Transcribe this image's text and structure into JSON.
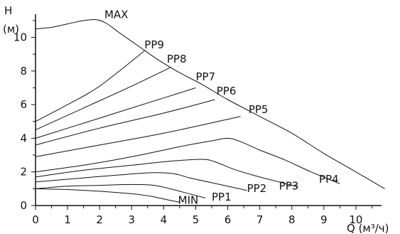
{
  "chart_data": {
    "type": "line",
    "title": "",
    "xlabel": "Q (м³/ч)",
    "ylabel_line1": "H",
    "ylabel_line2": "(м)",
    "xlim": [
      0,
      11.2
    ],
    "ylim": [
      0,
      11.8
    ],
    "x_ticks": [
      "0",
      "1",
      "2",
      "3",
      "4",
      "5",
      "6",
      "7",
      "8",
      "9",
      "10"
    ],
    "y_ticks": [
      "0",
      "2",
      "4",
      "6",
      "8",
      "10"
    ],
    "grid": false,
    "line_color": "#111111",
    "series": [
      {
        "name": "MAX",
        "points": [
          [
            0,
            10.5
          ],
          [
            0.5,
            10.6
          ],
          [
            1,
            10.8
          ],
          [
            1.5,
            11.0
          ],
          [
            1.9,
            11.05
          ],
          [
            2.2,
            10.85
          ],
          [
            2.6,
            10.3
          ],
          [
            3.2,
            9.5
          ],
          [
            3.8,
            8.7
          ],
          [
            4.5,
            7.9
          ],
          [
            5.2,
            7.2
          ],
          [
            6,
            6.3
          ],
          [
            7,
            5.3
          ],
          [
            8,
            4.3
          ],
          [
            9,
            3.1
          ],
          [
            10,
            2.0
          ],
          [
            10.9,
            1.0
          ]
        ]
      },
      {
        "name": "PP9",
        "points": [
          [
            0,
            5.0
          ],
          [
            1,
            6.0
          ],
          [
            2,
            7.1
          ],
          [
            3.4,
            9.2
          ]
        ]
      },
      {
        "name": "PP8",
        "points": [
          [
            0,
            4.5
          ],
          [
            1.5,
            5.8
          ],
          [
            3,
            7.1
          ],
          [
            4.2,
            8.2
          ]
        ]
      },
      {
        "name": "PP7",
        "points": [
          [
            0,
            4.0
          ],
          [
            2,
            5.2
          ],
          [
            4,
            6.4
          ],
          [
            5.0,
            7.0
          ]
        ]
      },
      {
        "name": "PP6",
        "points": [
          [
            0,
            3.6
          ],
          [
            2,
            4.6
          ],
          [
            4,
            5.5
          ],
          [
            5.6,
            6.3
          ]
        ]
      },
      {
        "name": "PP5",
        "points": [
          [
            0,
            2.9
          ],
          [
            2,
            3.6
          ],
          [
            4,
            4.3
          ],
          [
            6.4,
            5.3
          ]
        ]
      },
      {
        "name": "PP4",
        "points": [
          [
            0,
            2.0
          ],
          [
            1.5,
            2.4
          ],
          [
            3,
            2.9
          ],
          [
            4.5,
            3.5
          ],
          [
            5.5,
            3.85
          ],
          [
            6,
            4.0
          ],
          [
            6.4,
            3.8
          ],
          [
            7,
            3.3
          ],
          [
            7.8,
            2.7
          ],
          [
            8.6,
            2.0
          ],
          [
            9.5,
            1.3
          ]
        ]
      },
      {
        "name": "PP3",
        "points": [
          [
            0,
            1.7
          ],
          [
            1.5,
            2.1
          ],
          [
            3,
            2.4
          ],
          [
            4.3,
            2.65
          ],
          [
            5.2,
            2.75
          ],
          [
            5.6,
            2.6
          ],
          [
            6.2,
            2.15
          ],
          [
            6.8,
            1.8
          ],
          [
            7.5,
            1.45
          ],
          [
            8.2,
            1.1
          ]
        ]
      },
      {
        "name": "PP2",
        "points": [
          [
            0,
            1.4
          ],
          [
            1.2,
            1.6
          ],
          [
            2.5,
            1.8
          ],
          [
            3.6,
            1.95
          ],
          [
            4.3,
            1.9
          ],
          [
            4.8,
            1.65
          ],
          [
            5.4,
            1.4
          ],
          [
            6,
            1.15
          ],
          [
            6.6,
            0.9
          ]
        ]
      },
      {
        "name": "PP1",
        "points": [
          [
            0,
            1.0
          ],
          [
            1,
            1.15
          ],
          [
            2,
            1.2
          ],
          [
            3,
            1.25
          ],
          [
            3.7,
            1.2
          ],
          [
            4.2,
            1.0
          ],
          [
            4.7,
            0.75
          ],
          [
            5.3,
            0.45
          ]
        ]
      },
      {
        "name": "MIN",
        "points": [
          [
            0,
            1.0
          ],
          [
            1,
            0.95
          ],
          [
            2,
            0.85
          ],
          [
            3,
            0.7
          ],
          [
            3.6,
            0.55
          ],
          [
            4.1,
            0.35
          ],
          [
            4.5,
            0.2
          ]
        ]
      }
    ],
    "labels": [
      {
        "series": "MAX",
        "text": "MAX",
        "at": [
          2.15,
          11.15
        ]
      },
      {
        "series": "PP9",
        "text": "PP9",
        "at": [
          3.4,
          9.35
        ]
      },
      {
        "series": "PP8",
        "text": "PP8",
        "at": [
          4.1,
          8.5
        ]
      },
      {
        "series": "PP7",
        "text": "PP7",
        "at": [
          5.0,
          7.45
        ]
      },
      {
        "series": "PP6",
        "text": "PP6",
        "at": [
          5.65,
          6.6
        ]
      },
      {
        "series": "PP5",
        "text": "PP5",
        "at": [
          6.65,
          5.5
        ]
      },
      {
        "series": "PP4",
        "text": "PP4",
        "at": [
          8.85,
          1.35
        ]
      },
      {
        "series": "PP3",
        "text": "PP3",
        "at": [
          7.6,
          0.95
        ]
      },
      {
        "series": "PP2",
        "text": "PP2",
        "at": [
          6.6,
          0.8
        ]
      },
      {
        "series": "PP1",
        "text": "PP1",
        "at": [
          5.5,
          0.3
        ]
      },
      {
        "series": "MIN",
        "text": "MIN",
        "at": [
          4.45,
          0.1
        ]
      }
    ]
  }
}
